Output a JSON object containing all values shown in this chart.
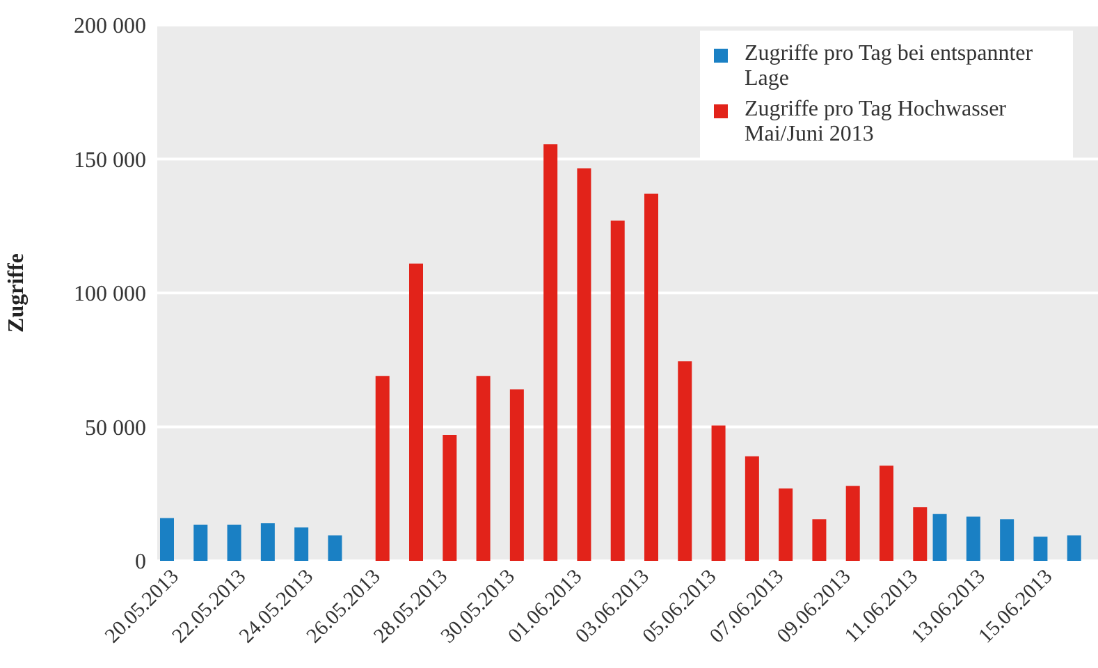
{
  "chart_data": {
    "type": "bar",
    "ylabel": "Zugriffe",
    "categories": [
      "20.05.2013",
      null,
      "22.05.2013",
      null,
      "24.05.2013",
      null,
      "26.05.2013",
      null,
      "28.05.2013",
      null,
      "30.05.2013",
      null,
      "01.06.2013",
      null,
      "03.06.2013",
      null,
      "05.06.2013",
      null,
      "07.06.2013",
      null,
      "09.06.2013",
      null,
      "11.06.2013",
      null,
      "13.06.2013",
      null,
      "15.06.2013",
      null
    ],
    "series": [
      {
        "name": "Zugriffe pro Tag bei entspannter Lage",
        "color": "#1a80c4",
        "values": [
          16000,
          13500,
          13500,
          14000,
          12500,
          9500,
          null,
          null,
          null,
          null,
          null,
          null,
          null,
          null,
          null,
          null,
          null,
          null,
          null,
          null,
          null,
          null,
          null,
          17500,
          16500,
          15500,
          9000,
          9500
        ]
      },
      {
        "name": "Zugriffe pro Tag Hochwasser Mai/Juni 2013",
        "color": "#e2231a",
        "values": [
          null,
          null,
          null,
          null,
          null,
          null,
          69000,
          111000,
          47000,
          69000,
          64000,
          155500,
          146500,
          127000,
          137000,
          74500,
          50500,
          39000,
          27000,
          15500,
          28000,
          35500,
          20000,
          null,
          null,
          null,
          null,
          null
        ]
      }
    ],
    "ylim": [
      0,
      200000
    ],
    "yticks": [
      {
        "value": 0,
        "label": "0"
      },
      {
        "value": 50000,
        "label": "50 000"
      },
      {
        "value": 100000,
        "label": "100 000"
      },
      {
        "value": 150000,
        "label": "150 000"
      },
      {
        "value": 200000,
        "label": "200 000"
      }
    ],
    "grid": "y",
    "legend": "top right"
  }
}
